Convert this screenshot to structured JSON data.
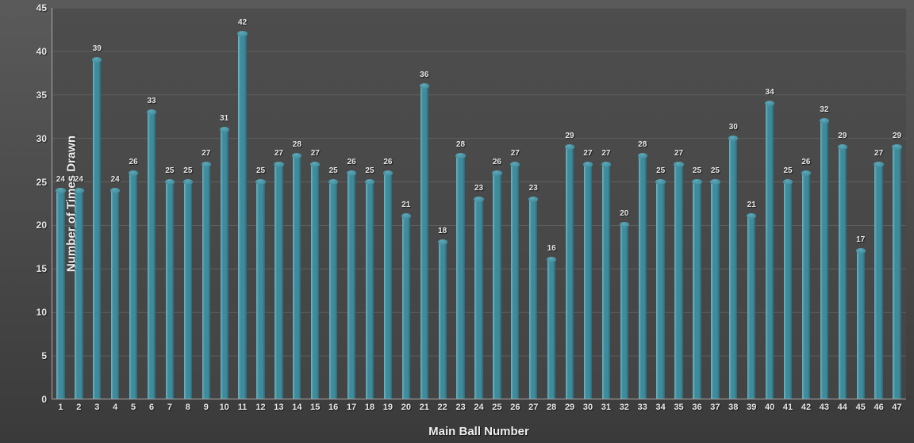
{
  "chart": {
    "type": "bar",
    "x_label": "Main Ball Number",
    "y_label": "Number of Times Drawn",
    "x_label_fontsize": 15,
    "y_label_fontsize": 15,
    "tick_fontsize": 12,
    "value_label_fontsize": 10,
    "background_gradient_top": "#5a5a5a",
    "background_gradient_bottom": "#3a3a3a",
    "plot_bg": "#474747",
    "grid_color": "#5f5f5f",
    "axis_color": "#aaaaaa",
    "text_color": "#e8e8e8",
    "bar_fill": "#3e8b9c",
    "bar_edge_light": "#6db6c5",
    "bar_edge_dark": "#2b6977",
    "bar_top": "#5fa8b8",
    "bar_width": 0.45,
    "y_min": 0,
    "y_max": 45,
    "y_tick_step": 5,
    "y_ticks": [
      0,
      5,
      10,
      15,
      20,
      25,
      30,
      35,
      40,
      45
    ],
    "categories": [
      "1",
      "2",
      "3",
      "4",
      "5",
      "6",
      "7",
      "8",
      "9",
      "10",
      "11",
      "12",
      "13",
      "14",
      "15",
      "16",
      "17",
      "18",
      "19",
      "20",
      "21",
      "22",
      "23",
      "24",
      "25",
      "26",
      "27",
      "28",
      "29",
      "30",
      "31",
      "32",
      "33",
      "34",
      "35",
      "36",
      "37",
      "38",
      "39",
      "40",
      "41",
      "42",
      "43",
      "44",
      "45",
      "46",
      "47"
    ],
    "values": [
      24,
      24,
      39,
      24,
      26,
      33,
      25,
      25,
      27,
      31,
      42,
      25,
      27,
      28,
      27,
      25,
      26,
      25,
      26,
      21,
      36,
      18,
      28,
      23,
      26,
      27,
      23,
      16,
      29,
      27,
      27,
      20,
      28,
      25,
      27,
      25,
      25,
      30,
      21,
      34,
      25,
      26,
      32,
      29,
      17,
      27,
      29
    ]
  }
}
